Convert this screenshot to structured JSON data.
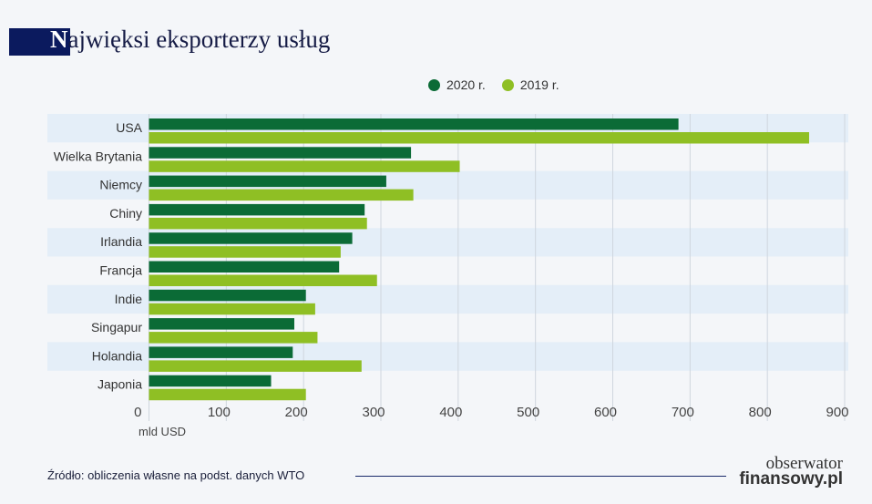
{
  "title": {
    "first_letter": "N",
    "rest": "ajwięksi eksporterzy usług"
  },
  "source": "Źródło: obliczenia własne na podst. danych WTO",
  "logo": {
    "line1": "obserwator",
    "line2": "finansowy.pl"
  },
  "colors": {
    "series_2020": "#0b6b36",
    "series_2019": "#8fbf24",
    "band": "#e4eef8",
    "title_box": "#0b1a5e"
  },
  "chart_data": {
    "type": "bar",
    "orientation": "horizontal",
    "title": "Najwięksi eksporterzy usług",
    "xlabel": "mld USD",
    "xlim": [
      0,
      900
    ],
    "xticks": [
      0,
      100,
      200,
      300,
      400,
      500,
      600,
      700,
      800,
      900
    ],
    "grid": true,
    "legend": "top-center",
    "categories": [
      "USA",
      "Wielka Brytania",
      "Niemcy",
      "Chiny",
      "Irlandia",
      "Francja",
      "Indie",
      "Singapur",
      "Holandia",
      "Japonia"
    ],
    "series": [
      {
        "name": "2020 r.",
        "values": [
          685,
          339,
          307,
          279,
          263,
          246,
          203,
          188,
          186,
          158
        ]
      },
      {
        "name": "2019 r.",
        "values": [
          854,
          402,
          342,
          282,
          248,
          295,
          215,
          218,
          275,
          203
        ]
      }
    ]
  }
}
